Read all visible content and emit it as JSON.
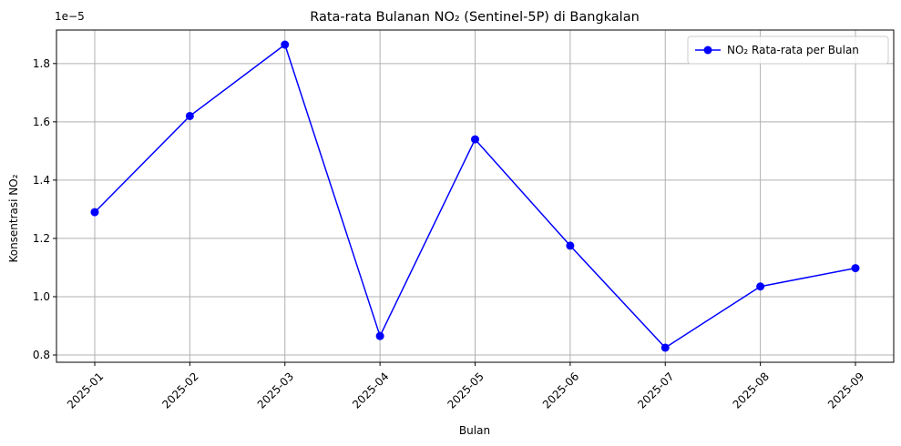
{
  "chart_data": {
    "type": "line",
    "title": "Rata-rata Bulanan NO₂ (Sentinel-5P) di Bangkalan",
    "xlabel": "Bulan",
    "ylabel": "Konsentrasi NO₂",
    "y_offset_label": "1e−5",
    "categories": [
      "2025-01",
      "2025-02",
      "2025-03",
      "2025-04",
      "2025-05",
      "2025-06",
      "2025-07",
      "2025-08",
      "2025-09"
    ],
    "series": [
      {
        "name": "NO₂ Rata-rata per Bulan",
        "values": [
          1.29e-05,
          1.62e-05,
          1.865e-05,
          8.65e-06,
          1.54e-05,
          1.175e-05,
          8.25e-06,
          1.035e-05,
          1.098e-05
        ],
        "color": "#0000ff",
        "marker": "circle"
      }
    ],
    "yticks": [
      8e-06,
      1e-05,
      1.2e-05,
      1.4e-05,
      1.6e-05,
      1.8e-05
    ],
    "ytick_labels": [
      "0.8",
      "1.0",
      "1.2",
      "1.4",
      "1.6",
      "1.8"
    ],
    "ylim": [
      7.75e-06,
      1.915e-05
    ],
    "grid": true,
    "legend_position": "upper right",
    "xtick_rotation": 45
  }
}
